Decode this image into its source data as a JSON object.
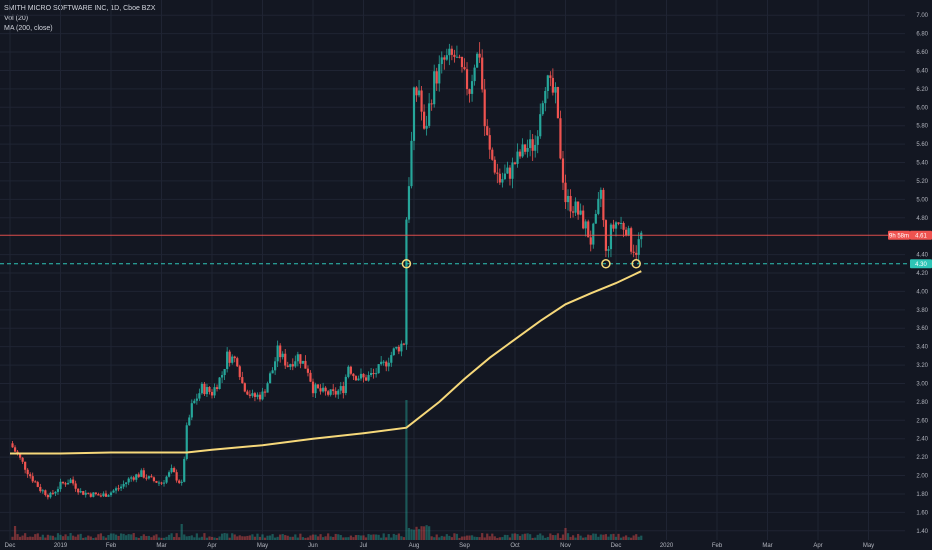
{
  "legend": {
    "symbol": "SMITH MICRO SOFTWARE INC, 1D, Cboe BZX",
    "volume": "Vol (20)",
    "ma": "MA (200, close)"
  },
  "badges": {
    "countdown": "9h 58m",
    "last_price": "4.61",
    "support_price": "4.30"
  },
  "colors": {
    "background": "#131722",
    "grid": "#1f2433",
    "up": "#26a69a",
    "down": "#ef5350",
    "ma": "#f6d87a",
    "support": "#2ec4b6",
    "price_line": "#ef5350"
  },
  "chart_data": {
    "type": "candlestick",
    "title": "SMITH MICRO SOFTWARE INC, 1D, Cboe BZX",
    "indicators": [
      "Vol (20)",
      "MA (200, close)"
    ],
    "ylim": [
      1.3,
      7.1
    ],
    "y_ticks": [
      1.4,
      1.6,
      1.8,
      2.0,
      2.2,
      2.4,
      2.6,
      2.8,
      3.0,
      3.2,
      3.4,
      3.6,
      3.8,
      4.0,
      4.2,
      4.4,
      4.8,
      5.0,
      5.2,
      5.4,
      5.6,
      5.8,
      6.0,
      6.2,
      6.4,
      6.6,
      6.8,
      7.0
    ],
    "x_ticks": [
      {
        "label": "Dec",
        "month": 0
      },
      {
        "label": "2019",
        "month": 1
      },
      {
        "label": "Feb",
        "month": 2
      },
      {
        "label": "Mar",
        "month": 3
      },
      {
        "label": "Apr",
        "month": 4
      },
      {
        "label": "May",
        "month": 5
      },
      {
        "label": "Jun",
        "month": 6
      },
      {
        "label": "Jul",
        "month": 7
      },
      {
        "label": "Aug",
        "month": 8
      },
      {
        "label": "Sep",
        "month": 9
      },
      {
        "label": "Oct",
        "month": 10
      },
      {
        "label": "Nov",
        "month": 11
      },
      {
        "label": "Dec",
        "month": 12
      },
      {
        "label": "2020",
        "month": 13
      },
      {
        "label": "Feb",
        "month": 14
      },
      {
        "label": "Mar",
        "month": 15
      },
      {
        "label": "Apr",
        "month": 16
      },
      {
        "label": "May",
        "month": 17
      }
    ],
    "last_price": 4.61,
    "support_level": 4.3,
    "support_touches_month": [
      7.85,
      11.8,
      12.4
    ],
    "close_path": [
      [
        0.0,
        2.35
      ],
      [
        0.2,
        2.18
      ],
      [
        0.4,
        2.0
      ],
      [
        0.6,
        1.85
      ],
      [
        0.8,
        1.78
      ],
      [
        1.0,
        1.9
      ],
      [
        1.2,
        1.95
      ],
      [
        1.4,
        1.82
      ],
      [
        1.6,
        1.8
      ],
      [
        1.8,
        1.78
      ],
      [
        2.0,
        1.82
      ],
      [
        2.2,
        1.88
      ],
      [
        2.4,
        1.98
      ],
      [
        2.6,
        2.02
      ],
      [
        2.8,
        1.95
      ],
      [
        3.0,
        1.92
      ],
      [
        3.2,
        2.05
      ],
      [
        3.4,
        1.9
      ],
      [
        3.5,
        2.5
      ],
      [
        3.6,
        2.75
      ],
      [
        3.8,
        2.95
      ],
      [
        4.0,
        2.9
      ],
      [
        4.2,
        3.1
      ],
      [
        4.3,
        3.3
      ],
      [
        4.5,
        3.25
      ],
      [
        4.6,
        3.0
      ],
      [
        4.8,
        2.85
      ],
      [
        5.0,
        2.88
      ],
      [
        5.2,
        3.15
      ],
      [
        5.3,
        3.35
      ],
      [
        5.5,
        3.2
      ],
      [
        5.7,
        3.3
      ],
      [
        5.9,
        3.15
      ],
      [
        6.0,
        2.95
      ],
      [
        6.2,
        2.9
      ],
      [
        6.4,
        2.88
      ],
      [
        6.6,
        2.95
      ],
      [
        6.7,
        3.2
      ],
      [
        6.8,
        3.1
      ],
      [
        7.0,
        3.05
      ],
      [
        7.2,
        3.1
      ],
      [
        7.4,
        3.2
      ],
      [
        7.6,
        3.35
      ],
      [
        7.8,
        3.45
      ],
      [
        7.85,
        4.8
      ],
      [
        7.95,
        5.6
      ],
      [
        8.0,
        6.1
      ],
      [
        8.1,
        6.2
      ],
      [
        8.2,
        5.7
      ],
      [
        8.3,
        6.0
      ],
      [
        8.4,
        6.3
      ],
      [
        8.6,
        6.5
      ],
      [
        8.8,
        6.55
      ],
      [
        9.0,
        6.3
      ],
      [
        9.1,
        6.2
      ],
      [
        9.2,
        6.5
      ],
      [
        9.3,
        6.6
      ],
      [
        9.4,
        5.8
      ],
      [
        9.5,
        5.5
      ],
      [
        9.7,
        5.2
      ],
      [
        9.9,
        5.3
      ],
      [
        10.0,
        5.4
      ],
      [
        10.2,
        5.55
      ],
      [
        10.4,
        5.6
      ],
      [
        10.5,
        6.0
      ],
      [
        10.6,
        6.3
      ],
      [
        10.8,
        6.1
      ],
      [
        10.9,
        5.5
      ],
      [
        11.0,
        5.0
      ],
      [
        11.2,
        4.9
      ],
      [
        11.4,
        4.7
      ],
      [
        11.5,
        4.55
      ],
      [
        11.6,
        4.75
      ],
      [
        11.7,
        5.1
      ],
      [
        11.8,
        4.4
      ],
      [
        11.9,
        4.65
      ],
      [
        12.0,
        4.75
      ],
      [
        12.2,
        4.7
      ],
      [
        12.3,
        4.5
      ],
      [
        12.4,
        4.45
      ],
      [
        12.5,
        4.61
      ]
    ],
    "ma200_path": [
      [
        0.0,
        2.24
      ],
      [
        1.0,
        2.24
      ],
      [
        2.0,
        2.25
      ],
      [
        3.0,
        2.25
      ],
      [
        3.5,
        2.25
      ],
      [
        4.0,
        2.28
      ],
      [
        5.0,
        2.33
      ],
      [
        6.0,
        2.4
      ],
      [
        7.0,
        2.46
      ],
      [
        7.85,
        2.52
      ],
      [
        8.5,
        2.8
      ],
      [
        9.0,
        3.05
      ],
      [
        9.5,
        3.28
      ],
      [
        10.0,
        3.48
      ],
      [
        10.5,
        3.68
      ],
      [
        11.0,
        3.86
      ],
      [
        11.5,
        3.98
      ],
      [
        12.0,
        4.09
      ],
      [
        12.5,
        4.22
      ]
    ],
    "volume_spike_months": [
      7.85,
      3.4,
      0.1,
      11.0
    ]
  }
}
